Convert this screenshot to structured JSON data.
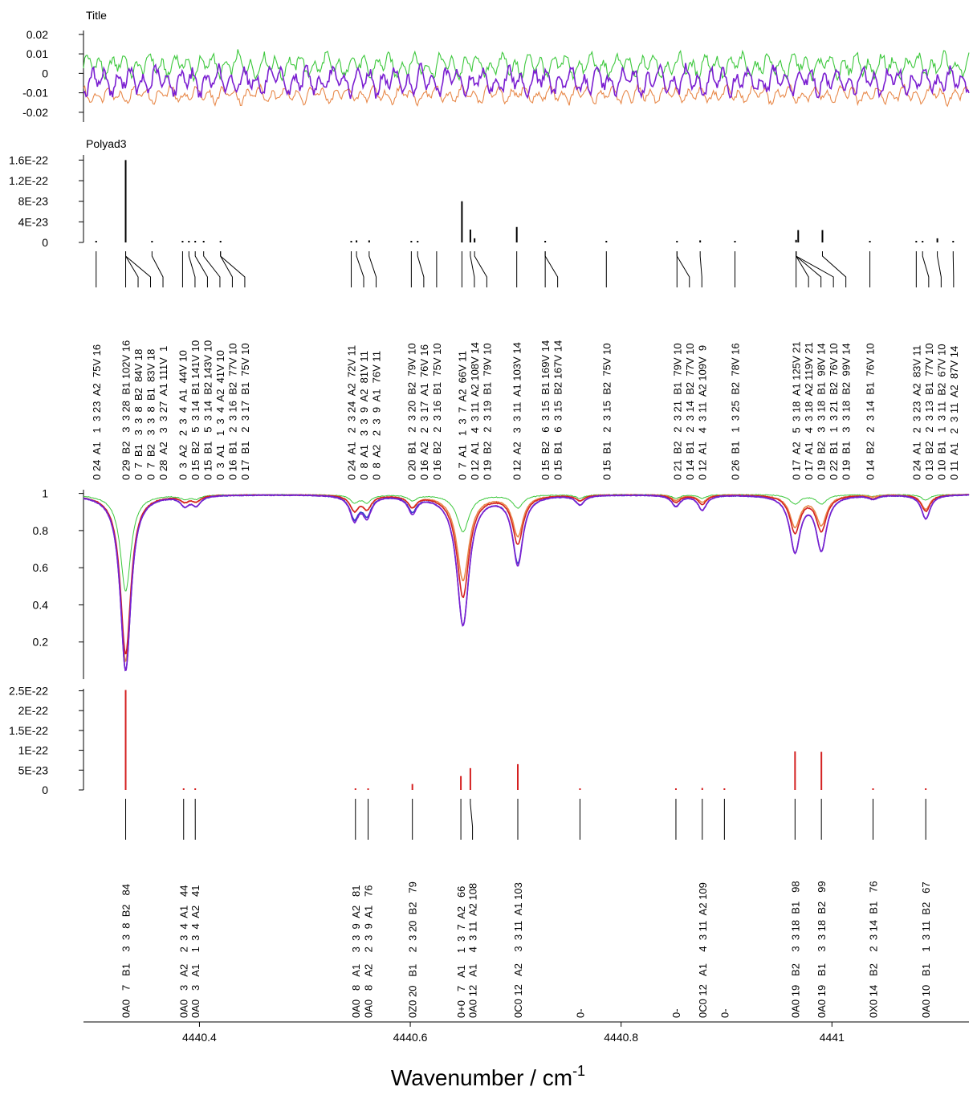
{
  "chart_data": {
    "type": "line",
    "xlabel": "Wavenumber / cm",
    "xlabel_superscript": "-1",
    "xlim": [
      4440.29,
      4441.13
    ],
    "x_ticks": [
      "4440.4",
      "4440.6",
      "4440.8",
      "4441"
    ],
    "colors": {
      "green": "#3cc83c",
      "orange": "#e8894a",
      "purple": "#7b1fd1",
      "blue": "#2e3ec8",
      "red": "#d42020",
      "black": "#000000"
    },
    "panels": {
      "residuals": {
        "title": "Title",
        "ylim": [
          -0.025,
          0.022
        ],
        "y_ticks": [
          "0.02",
          "0.01",
          "0",
          "-0.01",
          "-0.02"
        ],
        "y_tick_values": [
          0.02,
          0.01,
          0,
          -0.01,
          -0.02
        ],
        "series": [
          {
            "color": "green",
            "offset": 0.004,
            "amp": 0.007
          },
          {
            "color": "orange",
            "offset": -0.011,
            "amp": 0.005
          },
          {
            "color": "purple",
            "offset": -0.004,
            "amp": 0.008
          }
        ]
      },
      "polyad3": {
        "title": "Polyad3",
        "ylim": [
          0,
          1.7e-22
        ],
        "y_ticks": [
          "1.6E-22",
          "1.2E-22",
          "8E-23",
          "4E-23",
          "0"
        ],
        "y_tick_values": [
          1.6e-22,
          1.2e-22,
          8e-23,
          4e-23,
          0
        ],
        "sticks": [
          {
            "x": 4440.302,
            "y": 1e-24
          },
          {
            "x": 4440.33,
            "y": 1.6e-22
          },
          {
            "x": 4440.355,
            "y": 1e-24
          },
          {
            "x": 4440.384,
            "y": 1e-24
          },
          {
            "x": 4440.39,
            "y": 1e-24
          },
          {
            "x": 4440.396,
            "y": 1e-24
          },
          {
            "x": 4440.404,
            "y": 1e-24
          },
          {
            "x": 4440.42,
            "y": 1e-24
          },
          {
            "x": 4440.544,
            "y": 1e-24
          },
          {
            "x": 4440.549,
            "y": 4e-24
          },
          {
            "x": 4440.561,
            "y": 4e-24
          },
          {
            "x": 4440.601,
            "y": 1e-24
          },
          {
            "x": 4440.607,
            "y": 1e-24
          },
          {
            "x": 4440.649,
            "y": 8e-23
          },
          {
            "x": 4440.657,
            "y": 2.5e-23
          },
          {
            "x": 4440.661,
            "y": 8e-24
          },
          {
            "x": 4440.701,
            "y": 3e-23
          },
          {
            "x": 4440.728,
            "y": 1e-24
          },
          {
            "x": 4440.786,
            "y": 1e-24
          },
          {
            "x": 4440.853,
            "y": 3e-24
          },
          {
            "x": 4440.875,
            "y": 4e-24
          },
          {
            "x": 4440.908,
            "y": 1e-24
          },
          {
            "x": 4440.966,
            "y": 5e-24
          },
          {
            "x": 4440.968,
            "y": 2.4e-23
          },
          {
            "x": 4440.991,
            "y": 2.4e-23
          },
          {
            "x": 4441.036,
            "y": 1e-24
          },
          {
            "x": 4441.08,
            "y": 1e-24
          },
          {
            "x": 4441.086,
            "y": 1e-24
          },
          {
            "x": 4441.1,
            "y": 8e-24
          },
          {
            "x": 4441.115,
            "y": 1e-24
          }
        ],
        "labels": [
          {
            "x": 4440.302,
            "text": "0 24  A1   1  3 23  A2  75V 16"
          },
          {
            "x": 4440.33,
            "text": "0 29  B2   3  3 28  B1 102V 16"
          },
          {
            "x": 4440.33,
            "text": "0  7  B1   3  3  8  B2  84V 18"
          },
          {
            "x": 4440.33,
            "text": "0  7  B2   3  3  8  B1  83V 18"
          },
          {
            "x": 4440.355,
            "text": "0 28  A2   3  3 27  A1 111V  1"
          },
          {
            "x": 4440.384,
            "text": "0  3  A2   2  3  4  A1  44V 10"
          },
          {
            "x": 4440.39,
            "text": "0 15  B2   5  3 14  B1 141V 10"
          },
          {
            "x": 4440.396,
            "text": "0 15  B1   5  3 14  B2 143V 10"
          },
          {
            "x": 4440.404,
            "text": "0  3  A1   1  3  4  A2  41V 10"
          },
          {
            "x": 4440.42,
            "text": "0 16  B1   2  3 16  B2  77V 10"
          },
          {
            "x": 4440.42,
            "text": "0 17  B1   2  3 17  B1  75V 10"
          },
          {
            "x": 4440.544,
            "text": "0 24  A1   2  3 24  A2  72V 11"
          },
          {
            "x": 4440.549,
            "text": "0  8  A1   3  3  9  A2  81V 11"
          },
          {
            "x": 4440.561,
            "text": "0  8  A2   2  3  9  A1  76V 11"
          },
          {
            "x": 4440.601,
            "text": "0 20  B1   2  3 20  B2  79V 10"
          },
          {
            "x": 4440.607,
            "text": "0 16  A2   2  3 17  A1  76V 16"
          },
          {
            "x": 4440.625,
            "text": "0 16  B2   2  3 16  B1  75V 10"
          },
          {
            "x": 4440.649,
            "text": "0  7  A1   1  3  7  A2  66V 11"
          },
          {
            "x": 4440.657,
            "text": "0 12  A1   4  3 11  A2 108V 14"
          },
          {
            "x": 4440.661,
            "text": "0 19  B2   2  3 19  B1  79V 10"
          },
          {
            "x": 4440.701,
            "text": "0 12  A2   3  3 11  A1 103V 14"
          },
          {
            "x": 4440.728,
            "text": "0 15  B2   6  3 15  B1 169V 14"
          },
          {
            "x": 4440.728,
            "text": "0 15  B1   6  3 15  B2 167V 14"
          },
          {
            "x": 4440.786,
            "text": "0 15  B1   2  3 15  B2  75V 10"
          },
          {
            "x": 4440.853,
            "text": "0 21  B2   2  3 21  B1  79V 10"
          },
          {
            "x": 4440.853,
            "text": "0 14  B1   2  3 14  B2  77V 10"
          },
          {
            "x": 4440.875,
            "text": "0 12  A1   4  3 11  A2 109V  9"
          },
          {
            "x": 4440.908,
            "text": "0 26  B1   1  3 25  B2  78V 16"
          },
          {
            "x": 4440.966,
            "text": "0 17  A2   5  3 18  A1 125V 21"
          },
          {
            "x": 4440.966,
            "text": "0 17  A1   4  3 18  A2 119V 21"
          },
          {
            "x": 4440.966,
            "text": "0 19  B2   3  3 18  B1  98V 14"
          },
          {
            "x": 4440.966,
            "text": "0 22  B1   1  3 21  B2  76V 10"
          },
          {
            "x": 4440.991,
            "text": "0 19  B1   3  3 18  B2  99V 14"
          },
          {
            "x": 4441.036,
            "text": "0 14  B2   2  3 14  B1  76V 10"
          },
          {
            "x": 4441.08,
            "text": "0 24  A1   2  3 23  A2  83V 11"
          },
          {
            "x": 4441.086,
            "text": "0 13  B2   2  3 13  B1  77V 10"
          },
          {
            "x": 4441.1,
            "text": "0 10  B1   1  3 11  B2  67V 10"
          },
          {
            "x": 4441.115,
            "text": "0 11  A1   2  3 11  A2  87V 14"
          }
        ]
      },
      "spectrum": {
        "ylim": [
          0.0,
          1.02
        ],
        "y_ticks": [
          "1",
          "0.8",
          "0.6",
          "0.4",
          "0.2"
        ],
        "y_tick_values": [
          1,
          0.8,
          0.6,
          0.4,
          0.2
        ],
        "baseline": 0.995,
        "lines": [
          {
            "x": 4440.33,
            "width": 0.006,
            "depths": {
              "green": 0.52,
              "orange": 0.9,
              "red": 0.86,
              "blue": 0.95,
              "purple": 0.95
            }
          },
          {
            "x": 4440.386,
            "width": 0.005,
            "depths": {
              "green": 0.02,
              "orange": 0.03,
              "red": 0.03,
              "blue": 0.05,
              "purple": 0.05
            }
          },
          {
            "x": 4440.397,
            "width": 0.005,
            "depths": {
              "green": 0.02,
              "orange": 0.03,
              "red": 0.03,
              "blue": 0.05,
              "purple": 0.05
            }
          },
          {
            "x": 4440.547,
            "width": 0.005,
            "depths": {
              "green": 0.04,
              "orange": 0.08,
              "red": 0.08,
              "blue": 0.12,
              "purple": 0.13
            }
          },
          {
            "x": 4440.559,
            "width": 0.005,
            "depths": {
              "green": 0.04,
              "orange": 0.07,
              "red": 0.07,
              "blue": 0.1,
              "purple": 0.11
            }
          },
          {
            "x": 4440.602,
            "width": 0.005,
            "depths": {
              "green": 0.03,
              "orange": 0.06,
              "red": 0.06,
              "blue": 0.08,
              "purple": 0.09
            }
          },
          {
            "x": 4440.65,
            "width": 0.007,
            "depths": {
              "green": 0.2,
              "orange": 0.46,
              "red": 0.55,
              "blue": 0.7,
              "purple": 0.7
            }
          },
          {
            "x": 4440.702,
            "width": 0.006,
            "depths": {
              "green": 0.07,
              "orange": 0.22,
              "red": 0.26,
              "blue": 0.36,
              "purple": 0.37
            }
          },
          {
            "x": 4440.761,
            "width": 0.005,
            "depths": {
              "green": 0.02,
              "orange": 0.03,
              "red": 0.03,
              "blue": 0.05,
              "purple": 0.05
            }
          },
          {
            "x": 4440.852,
            "width": 0.005,
            "depths": {
              "green": 0.02,
              "orange": 0.03,
              "red": 0.04,
              "blue": 0.06,
              "purple": 0.06
            }
          },
          {
            "x": 4440.877,
            "width": 0.005,
            "depths": {
              "green": 0.02,
              "orange": 0.04,
              "red": 0.05,
              "blue": 0.08,
              "purple": 0.08
            }
          },
          {
            "x": 4440.965,
            "width": 0.006,
            "depths": {
              "green": 0.05,
              "orange": 0.17,
              "red": 0.2,
              "blue": 0.3,
              "purple": 0.3
            }
          },
          {
            "x": 4440.99,
            "width": 0.006,
            "depths": {
              "green": 0.05,
              "orange": 0.16,
              "red": 0.19,
              "blue": 0.29,
              "purple": 0.29
            }
          },
          {
            "x": 4441.039,
            "width": 0.005,
            "depths": {
              "green": 0.01,
              "orange": 0.01,
              "red": 0.02,
              "blue": 0.02,
              "purple": 0.02
            }
          },
          {
            "x": 4441.089,
            "width": 0.005,
            "depths": {
              "green": 0.03,
              "orange": 0.08,
              "red": 0.09,
              "blue": 0.13,
              "purple": 0.13
            }
          }
        ]
      },
      "assignments": {
        "ylim": [
          0,
          2.55e-22
        ],
        "y_ticks": [
          "2.5E-22",
          "2E-22",
          "1.5E-22",
          "1E-22",
          "5E-23",
          "0"
        ],
        "y_tick_values": [
          2.5e-22,
          2e-22,
          1.5e-22,
          1e-22,
          5e-23,
          0
        ],
        "sticks": [
          {
            "x": 4440.33,
            "y": 2.52e-22
          },
          {
            "x": 4440.385,
            "y": 1e-24
          },
          {
            "x": 4440.396,
            "y": 1e-24
          },
          {
            "x": 4440.548,
            "y": 3e-24
          },
          {
            "x": 4440.56,
            "y": 3e-24
          },
          {
            "x": 4440.602,
            "y": 1.5e-23
          },
          {
            "x": 4440.648,
            "y": 3.5e-23
          },
          {
            "x": 4440.657,
            "y": 5.5e-23
          },
          {
            "x": 4440.702,
            "y": 6.5e-23
          },
          {
            "x": 4440.761,
            "y": 2e-24
          },
          {
            "x": 4440.852,
            "y": 2e-24
          },
          {
            "x": 4440.877,
            "y": 5e-24
          },
          {
            "x": 4440.898,
            "y": 1e-24
          },
          {
            "x": 4440.965,
            "y": 9.7e-23
          },
          {
            "x": 4440.99,
            "y": 9.6e-23
          },
          {
            "x": 4441.039,
            "y": 1e-24
          },
          {
            "x": 4441.089,
            "y": 3e-24
          }
        ],
        "labels": [
          {
            "x": 4440.33,
            "text": "0A0   7   B1    3  3  8  B2   84"
          },
          {
            "x": 4440.385,
            "text": "0A0   3   A2    2  3  4  A1   44"
          },
          {
            "x": 4440.396,
            "text": "0A0   3   A1    1  3  4  A2   41"
          },
          {
            "x": 4440.548,
            "text": "0A0   8   A1    3  3  9  A2   81"
          },
          {
            "x": 4440.56,
            "text": "0A0   8   A2    2  3  9  A1   76"
          },
          {
            "x": 4440.602,
            "text": "0Z0 20   B1    2  3 20  B2   79"
          },
          {
            "x": 4440.648,
            "text": "0+0   7   A1    1  3  7  A2   66"
          },
          {
            "x": 4440.657,
            "text": "0A0 12   A1    4  3 11  A2 108"
          },
          {
            "x": 4440.702,
            "text": "0C0 12   A2    3  3 11  A1 103"
          },
          {
            "x": 4440.761,
            "text": "0-"
          },
          {
            "x": 4440.852,
            "text": "0-"
          },
          {
            "x": 4440.877,
            "text": "0C0 12   A1    4  3 11  A2 109"
          },
          {
            "x": 4440.898,
            "text": "0-"
          },
          {
            "x": 4440.965,
            "text": "0A0 19   B2    3  3 18  B1   98"
          },
          {
            "x": 4440.99,
            "text": "0A0 19   B1    3  3 18  B2   99"
          },
          {
            "x": 4441.039,
            "text": "0X0 14   B2    2  3 14  B1   76"
          },
          {
            "x": 4441.089,
            "text": "0A0 10   B1    1  3 11  B2   67"
          }
        ]
      }
    }
  }
}
